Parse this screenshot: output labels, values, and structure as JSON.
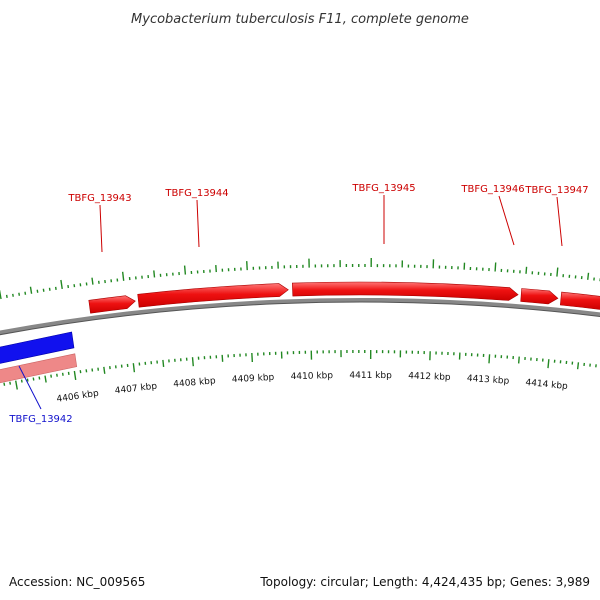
{
  "title": "Mycobacterium tuberculosis F11, complete genome",
  "footer": {
    "accession": "Accession: NC_009565",
    "summary": "Topology: circular; Length: 4,424,435 bp; Genes: 3,989"
  },
  "colors": {
    "forward_gene": "#ee1111",
    "forward_label": "#cc0000",
    "reverse_gene": "#1111ee",
    "reverse_label": "#1111cc",
    "reverse_gene_faded": "#ee8888",
    "tick": "#228822",
    "backbone": "#888888",
    "other_feature": "#bbaa77"
  },
  "scale": {
    "unit": "kbp",
    "labeled_ticks": [
      {
        "label": "4406 kbp",
        "kbp": 4406
      },
      {
        "label": "4407 kbp",
        "kbp": 4407
      },
      {
        "label": "4408 kbp",
        "kbp": 4408
      },
      {
        "label": "4409 kbp",
        "kbp": 4409
      },
      {
        "label": "4410 kbp",
        "kbp": 4410
      },
      {
        "label": "4411 kbp",
        "kbp": 4411
      },
      {
        "label": "4412 kbp",
        "kbp": 4412
      },
      {
        "label": "4413 kbp",
        "kbp": 4413
      },
      {
        "label": "4414 kbp",
        "kbp": 4414
      }
    ]
  },
  "forward_genes": [
    {
      "name": "",
      "start_kbp": 4406.4,
      "end_kbp": 4407.15
    },
    {
      "name": "TBFG_13943",
      "start_kbp": 4407.2,
      "end_kbp": 4409.65,
      "label": "TBFG_13943"
    },
    {
      "name": "TBFG_13944",
      "start_kbp": 4409.72,
      "end_kbp": 4413.4,
      "label": "TBFG_13944"
    },
    {
      "name": "TBFG_13945",
      "start_kbp": 4413.45,
      "end_kbp": 4414.05,
      "label": "TBFG_13945"
    },
    {
      "name": "TBFG_13946",
      "start_kbp": 4414.1,
      "end_kbp": 4414.9,
      "label": "TBFG_13946"
    },
    {
      "name": "TBFG_13947",
      "start_kbp": 4414.95,
      "end_kbp": 4415.4,
      "label": "TBFG_13947"
    }
  ],
  "gene_labels": [
    {
      "label": "TBFG_13943",
      "strand": "forward"
    },
    {
      "label": "TBFG_13944",
      "strand": "forward"
    },
    {
      "label": "TBFG_13945",
      "strand": "forward"
    },
    {
      "label": "TBFG_13946",
      "strand": "forward"
    },
    {
      "label": "TBFG_13947",
      "strand": "forward"
    },
    {
      "label": "TBFG_13942",
      "strand": "reverse"
    }
  ]
}
